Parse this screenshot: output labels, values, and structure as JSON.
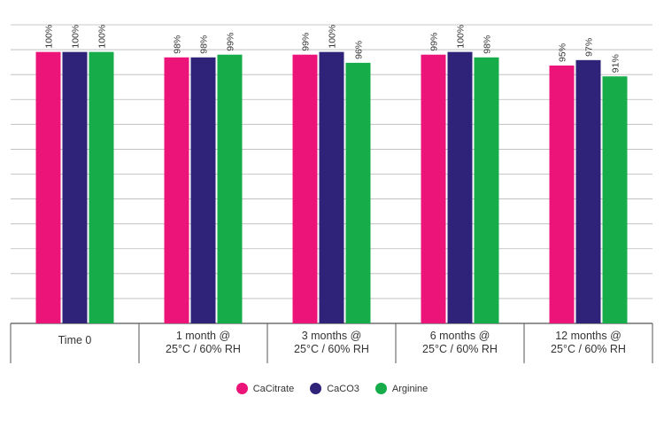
{
  "chart_data": {
    "type": "bar",
    "categories": [
      [
        "Time 0"
      ],
      [
        "1 month @",
        "25°C / 60% RH"
      ],
      [
        "3 months @",
        "25°C / 60% RH"
      ],
      [
        "6 months @",
        "25°C / 60% RH"
      ],
      [
        "12 months @",
        "25°C / 60% RH"
      ]
    ],
    "series": [
      {
        "name": "CaCitrate",
        "color": "#ec1479",
        "values": [
          100,
          98,
          99,
          99,
          95
        ],
        "labels": [
          "100%",
          "98%",
          "99%",
          "99%",
          "95%"
        ]
      },
      {
        "name": "CaCO3",
        "color": "#2e2379",
        "values": [
          100,
          98,
          100,
          100,
          97
        ],
        "labels": [
          "100%",
          "98%",
          "100%",
          "100%",
          "97%"
        ]
      },
      {
        "name": "Arginine",
        "color": "#16ac4a",
        "values": [
          100,
          99,
          96,
          98,
          91
        ],
        "labels": [
          "100%",
          "99%",
          "96%",
          "98%",
          "91%"
        ]
      }
    ],
    "ylim": [
      0,
      110
    ],
    "grid": true,
    "legend_position": "bottom-center",
    "title": "",
    "xlabel": "",
    "ylabel": ""
  }
}
